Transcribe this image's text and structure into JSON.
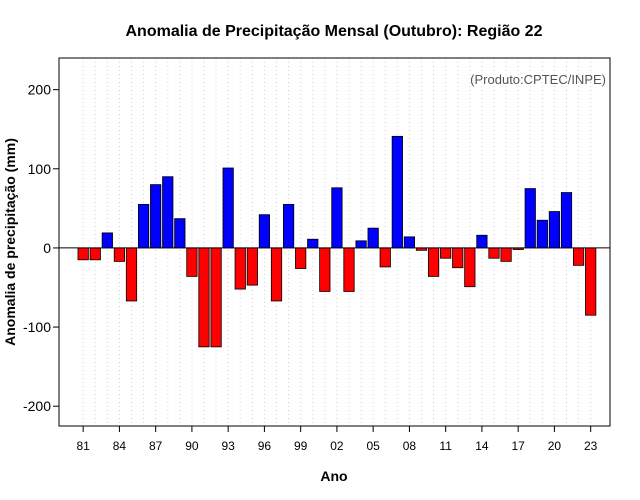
{
  "chart_data": {
    "type": "bar",
    "title": "Anomalia de Precipitação Mensal (Outubro): Região 22",
    "xlabel": "Ano",
    "ylabel": "Anomalia de precipitação (mm)",
    "annotation": "(Produto:CPTEC/INPE)",
    "annotation_position": "top-right",
    "ylim": [
      -225,
      240
    ],
    "yticks": [
      -200,
      -100,
      0,
      100,
      200
    ],
    "grid": "vertical dotted",
    "years": [
      1981,
      1982,
      1983,
      1984,
      1985,
      1986,
      1987,
      1988,
      1989,
      1990,
      1991,
      1992,
      1993,
      1994,
      1995,
      1996,
      1997,
      1998,
      1999,
      2000,
      2001,
      2002,
      2003,
      2004,
      2005,
      2006,
      2007,
      2008,
      2009,
      2010,
      2011,
      2012,
      2013,
      2014,
      2015,
      2016,
      2017,
      2018,
      2019,
      2020,
      2021,
      2022,
      2023
    ],
    "values": [
      -15,
      -15,
      19,
      -17,
      -67,
      55,
      80,
      90,
      37,
      -36,
      -125,
      -125,
      101,
      -52,
      -47,
      42,
      -67,
      55,
      -26,
      11,
      -55,
      76,
      -55,
      9,
      25,
      -24,
      141,
      14,
      -3,
      -36,
      -13,
      -25,
      -49,
      16,
      -13,
      -17,
      -2,
      75,
      35,
      46,
      70,
      -22,
      -85
    ],
    "tick_labels": [
      "81",
      "84",
      "87",
      "90",
      "93",
      "96",
      "99",
      "02",
      "05",
      "08",
      "11",
      "14",
      "17",
      "20",
      "23"
    ],
    "tick_every": 3,
    "colors": {
      "positive": "#0000ff",
      "negative": "#ff0000",
      "outline": "#000000",
      "grid": "#d3d3d3"
    }
  }
}
